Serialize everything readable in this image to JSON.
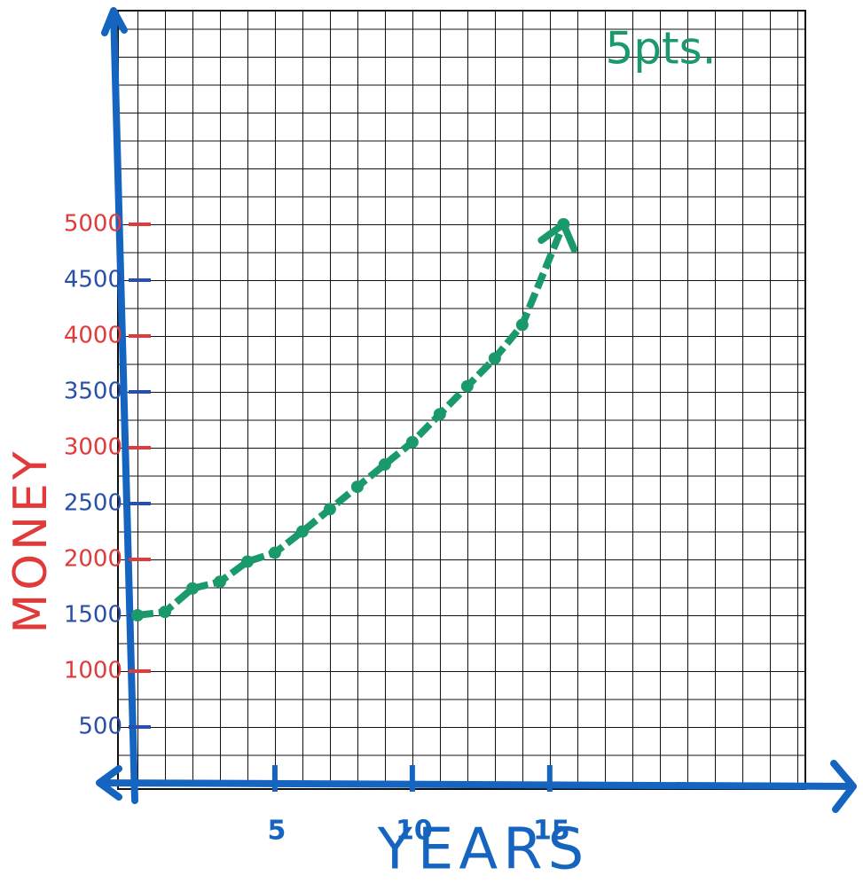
{
  "chart_data": {
    "type": "line",
    "annotation": "5pts.",
    "x_label": "YEARS",
    "y_label": "MONEY",
    "x": [
      0,
      1,
      2,
      3,
      4,
      5,
      6,
      7,
      8,
      9,
      10,
      11,
      12,
      13,
      14,
      15.5
    ],
    "series": [
      {
        "color": "#1a9a6a",
        "values": [
          1500,
          1530,
          1740,
          1800,
          1980,
          2060,
          2250,
          2450,
          2650,
          2850,
          3050,
          3300,
          3550,
          3800,
          4100,
          5000
        ]
      }
    ],
    "xlim": [
      0,
      24.3
    ],
    "xticks": [
      5,
      10,
      15
    ],
    "ylim": [
      0,
      6900
    ],
    "yticks": [
      500,
      1000,
      1500,
      2000,
      2500,
      3000,
      3500,
      4000,
      4500,
      5000
    ],
    "ytick_colors": [
      "#2a4fa8",
      "#e03a3a",
      "#2a4fa8",
      "#e03a3a",
      "#2a4fa8",
      "#e03a3a",
      "#2a4fa8",
      "#e03a3a",
      "#2a4fa8",
      "#e03a3a"
    ],
    "axis_color": "#1565c0",
    "grid": true
  }
}
